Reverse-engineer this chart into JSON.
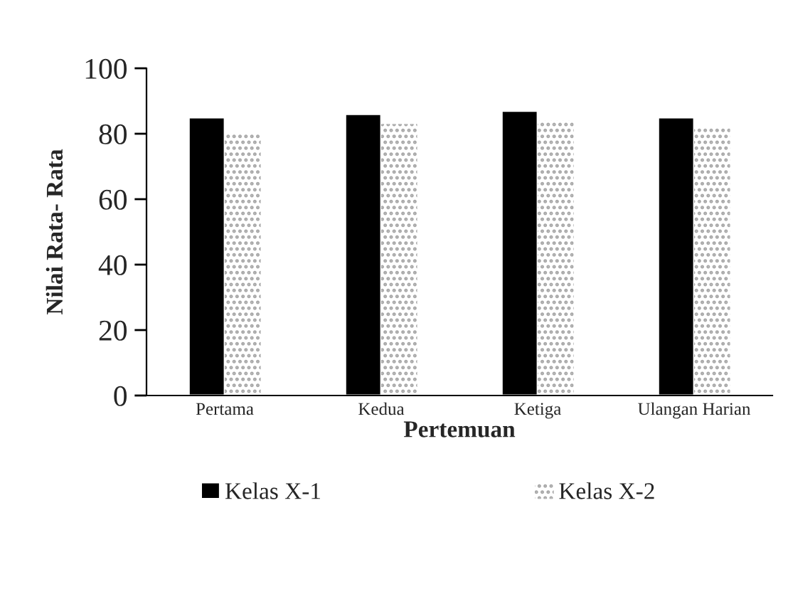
{
  "chart_data": {
    "type": "bar",
    "xlabel": "Pertemuan",
    "ylabel": "Nilai Rata- Rata",
    "categories": [
      "Pertama",
      "Kedua",
      "Ketiga",
      "Ulangan Harian"
    ],
    "series": [
      {
        "name": "Kelas X-1",
        "color": "#000000",
        "values": [
          85,
          86,
          87,
          85
        ]
      },
      {
        "name": "Kelas X-2",
        "color": "#a6a6a6",
        "values": [
          80,
          83,
          84,
          82
        ]
      }
    ],
    "ylim": [
      0,
      100
    ],
    "yticks": [
      0,
      20,
      40,
      60,
      80,
      100
    ],
    "grid": false,
    "legend": "bottom"
  }
}
